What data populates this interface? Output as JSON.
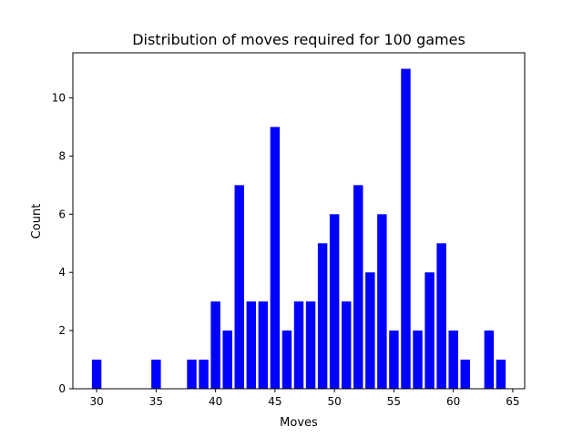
{
  "chart_data": {
    "type": "bar",
    "title": "Distribution of moves required for 100 games",
    "xlabel": "Moves",
    "ylabel": "Count",
    "x": [
      30,
      35,
      38,
      39,
      40,
      41,
      42,
      43,
      44,
      45,
      46,
      47,
      48,
      49,
      50,
      51,
      52,
      53,
      54,
      55,
      56,
      57,
      58,
      59,
      60,
      61,
      63,
      64
    ],
    "values": [
      1,
      1,
      1,
      1,
      3,
      2,
      7,
      3,
      3,
      9,
      2,
      3,
      3,
      5,
      6,
      3,
      7,
      4,
      6,
      2,
      11,
      2,
      4,
      5,
      2,
      1,
      2,
      1
    ],
    "xlim": [
      28,
      66
    ],
    "ylim": [
      0,
      11.55
    ],
    "xticks": [
      30,
      35,
      40,
      45,
      50,
      55,
      60,
      65
    ],
    "yticks": [
      0,
      2,
      4,
      6,
      8,
      10
    ],
    "bar_color": "#0000ff",
    "grid": false
  }
}
